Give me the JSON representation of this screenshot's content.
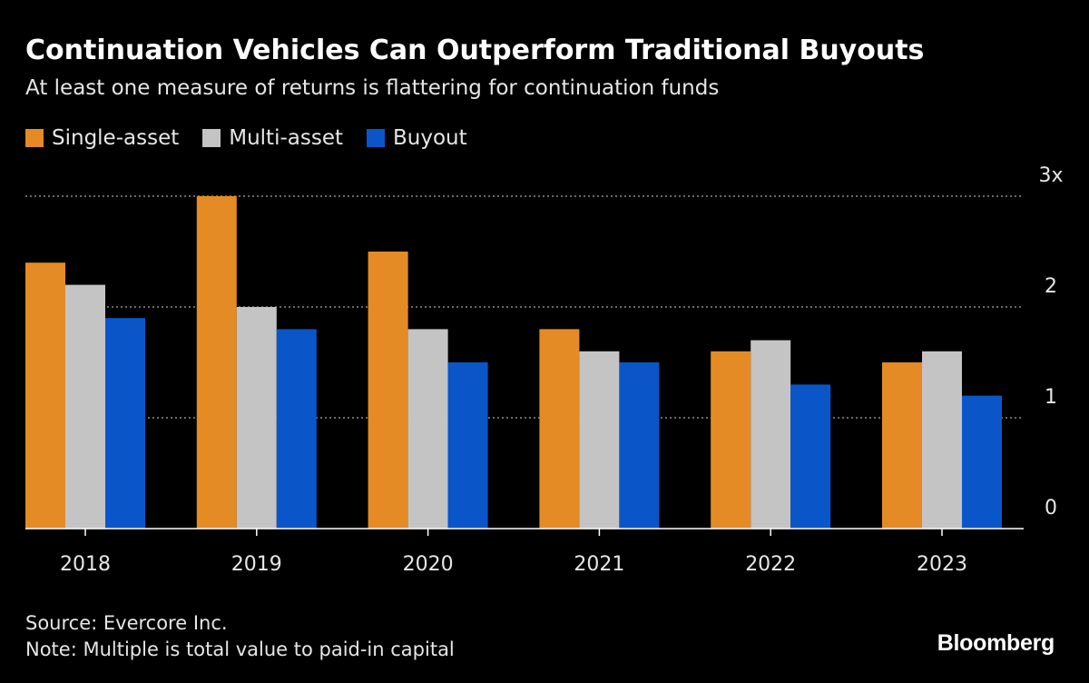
{
  "title": "Continuation Vehicles Can Outperform Traditional Buyouts",
  "subtitle": "At least one measure of returns is flattering for continuation funds",
  "legend": [
    {
      "label": "Single-asset",
      "color": "#E48B26"
    },
    {
      "label": "Multi-asset",
      "color": "#C4C4C4"
    },
    {
      "label": "Buyout",
      "color": "#0A56C9"
    }
  ],
  "chart_data": {
    "type": "bar",
    "title": "Continuation Vehicles Can Outperform Traditional Buyouts",
    "subtitle": "At least one measure of returns is flattering for continuation funds",
    "xlabel": "",
    "ylabel": "",
    "categories": [
      "2018",
      "2019",
      "2020",
      "2021",
      "2022",
      "2023"
    ],
    "series": [
      {
        "name": "Single-asset",
        "color": "#E48B26",
        "values": [
          2.4,
          3.0,
          2.5,
          1.8,
          1.6,
          1.5
        ]
      },
      {
        "name": "Multi-asset",
        "color": "#C4C4C4",
        "values": [
          2.2,
          2.0,
          1.8,
          1.6,
          1.7,
          1.6
        ]
      },
      {
        "name": "Buyout",
        "color": "#0A56C9",
        "values": [
          1.9,
          1.8,
          1.5,
          1.5,
          1.3,
          1.2
        ]
      }
    ],
    "ylim": [
      0,
      3
    ],
    "yticks": [
      {
        "value": 0,
        "label": "0"
      },
      {
        "value": 1,
        "label": "1"
      },
      {
        "value": 2,
        "label": "2"
      },
      {
        "value": 3,
        "label": "3x"
      }
    ],
    "grid": true,
    "legend_position": "top-left"
  },
  "footer": {
    "source": "Source: Evercore Inc.",
    "note": "Note: Multiple is total value to paid-in capital"
  },
  "brand": "Bloomberg"
}
